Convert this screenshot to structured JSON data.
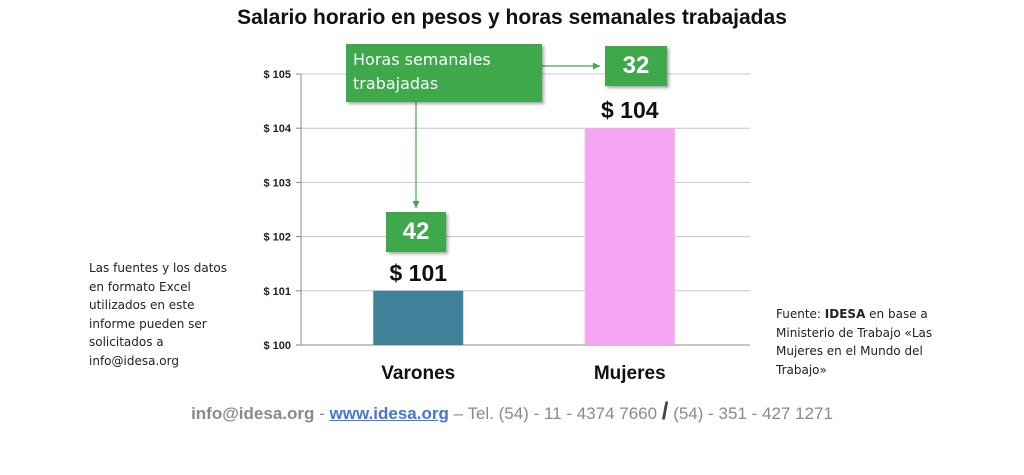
{
  "chart_data": {
    "type": "bar",
    "title": "Salario horario en pesos y horas semanales trabajadas",
    "categories": [
      "Varones",
      "Mujeres"
    ],
    "series": [
      {
        "values": [
          101,
          104
        ],
        "colors": [
          "#3f8199",
          "#f4a6f2"
        ],
        "data_labels": [
          "$ 101",
          "$ 104"
        ]
      }
    ],
    "ylim": [
      100,
      105
    ],
    "yticks": [
      100,
      101,
      102,
      103,
      104,
      105
    ],
    "ytick_labels": [
      "$ 100",
      "$ 101",
      "$ 102",
      "$ 103",
      "$ 104",
      "$ 105"
    ],
    "grid": true,
    "annotations": {
      "callout_label": "Horas semanales trabajadas",
      "hours": [
        {
          "category": "Varones",
          "value": "42"
        },
        {
          "category": "Mujeres",
          "value": "32"
        }
      ],
      "callout_color": "#3ea84b"
    }
  },
  "notes": {
    "left": "Las fuentes y los datos en formato Excel utilizados en este informe pueden ser solicitados a info@idesa.org",
    "right_prefix": "Fuente: ",
    "right_brand": "IDESA",
    "right_rest": " en base a Ministerio de Trabajo «Las Mujeres en el Mundo del Trabajo»"
  },
  "footer": {
    "email": "info@idesa.org",
    "dash1": " - ",
    "website": "www.idesa.org",
    "phone1": " – Tel. (54) - 11 - 4374 7660 ",
    "slash": "/",
    "phone2": " (54) - 351 - 427 1271"
  }
}
